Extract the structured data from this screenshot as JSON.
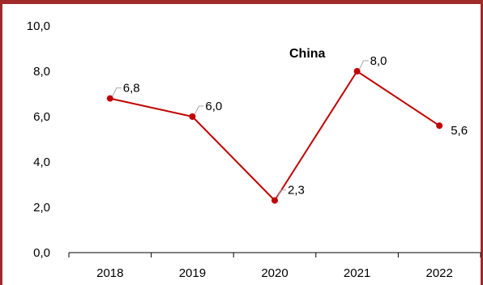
{
  "chart_data": {
    "type": "line",
    "title": "China",
    "x": [
      "2018",
      "2019",
      "2020",
      "2021",
      "2022"
    ],
    "series": [
      {
        "values": [
          6.8,
          6.0,
          2.3,
          8.0,
          5.6
        ],
        "data_labels": [
          "6,8",
          "6,0",
          "2,3",
          "8,0",
          "5,6"
        ]
      }
    ],
    "y_ticks": [
      "0,0",
      "2,0",
      "4,0",
      "6,0",
      "8,0",
      "10,0"
    ],
    "ylim": [
      0,
      10
    ],
    "grid": false,
    "legend": "none",
    "colors": {
      "line": "#c00000",
      "marker": "#c00000",
      "frame": "#a02a2a",
      "axis": "#000000",
      "leader": "#a6a6a6"
    }
  }
}
